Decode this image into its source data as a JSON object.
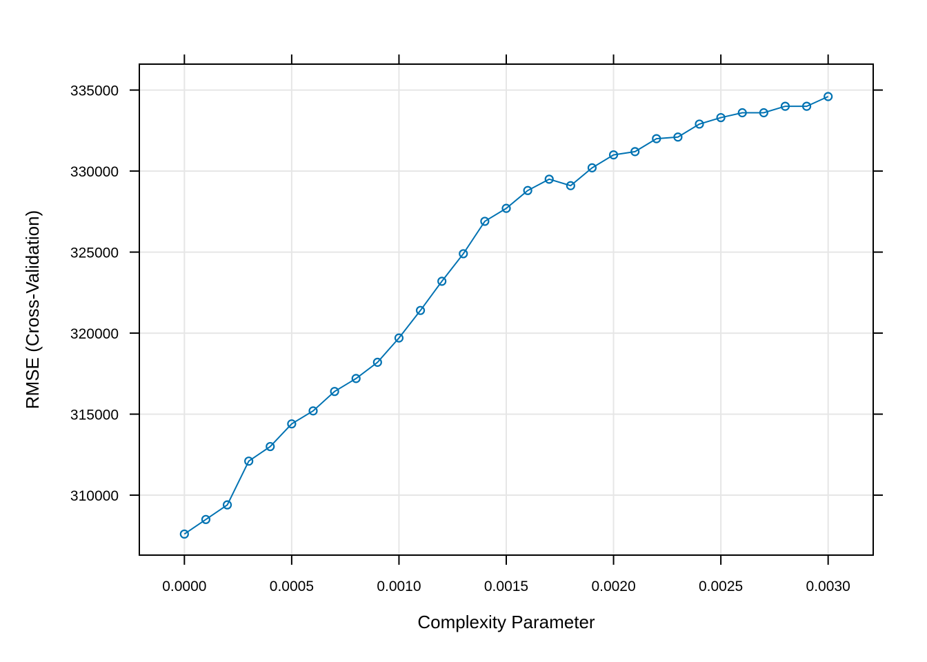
{
  "chart_data": {
    "type": "line",
    "title": "",
    "xlabel": "Complexity Parameter",
    "ylabel": "RMSE (Cross-Validation)",
    "xlim": [
      -0.00021,
      0.00321
    ],
    "ylim": [
      306300,
      336600
    ],
    "x_ticks": [
      0.0,
      0.0005,
      0.001,
      0.0015,
      0.002,
      0.0025,
      0.003
    ],
    "x_tick_labels": [
      "0.0000",
      "0.0005",
      "0.0010",
      "0.0015",
      "0.0020",
      "0.0025",
      "0.0030"
    ],
    "y_ticks": [
      310000,
      315000,
      320000,
      325000,
      330000,
      335000
    ],
    "y_tick_labels": [
      "310000",
      "315000",
      "320000",
      "325000",
      "330000",
      "335000"
    ],
    "grid": true,
    "marker": "open-circle",
    "series": [
      {
        "color": "#0072B2",
        "x": [
          0.0,
          0.0001,
          0.0002,
          0.0003,
          0.0004,
          0.0005,
          0.0006,
          0.0007,
          0.0008,
          0.0009,
          0.001,
          0.0011,
          0.0012,
          0.0013,
          0.0014,
          0.0015,
          0.0016,
          0.0017,
          0.0018,
          0.0019,
          0.002,
          0.0021,
          0.0022,
          0.0023,
          0.0024,
          0.0025,
          0.0026,
          0.0027,
          0.0028,
          0.0029,
          0.003
        ],
        "y": [
          307600,
          308500,
          309400,
          312100,
          313000,
          314400,
          315200,
          316400,
          317200,
          318200,
          319700,
          321400,
          323200,
          324900,
          326900,
          327700,
          328800,
          329500,
          329100,
          330200,
          331000,
          331200,
          332000,
          332100,
          332900,
          333300,
          333600,
          333600,
          334000,
          334000,
          334600
        ]
      }
    ]
  }
}
